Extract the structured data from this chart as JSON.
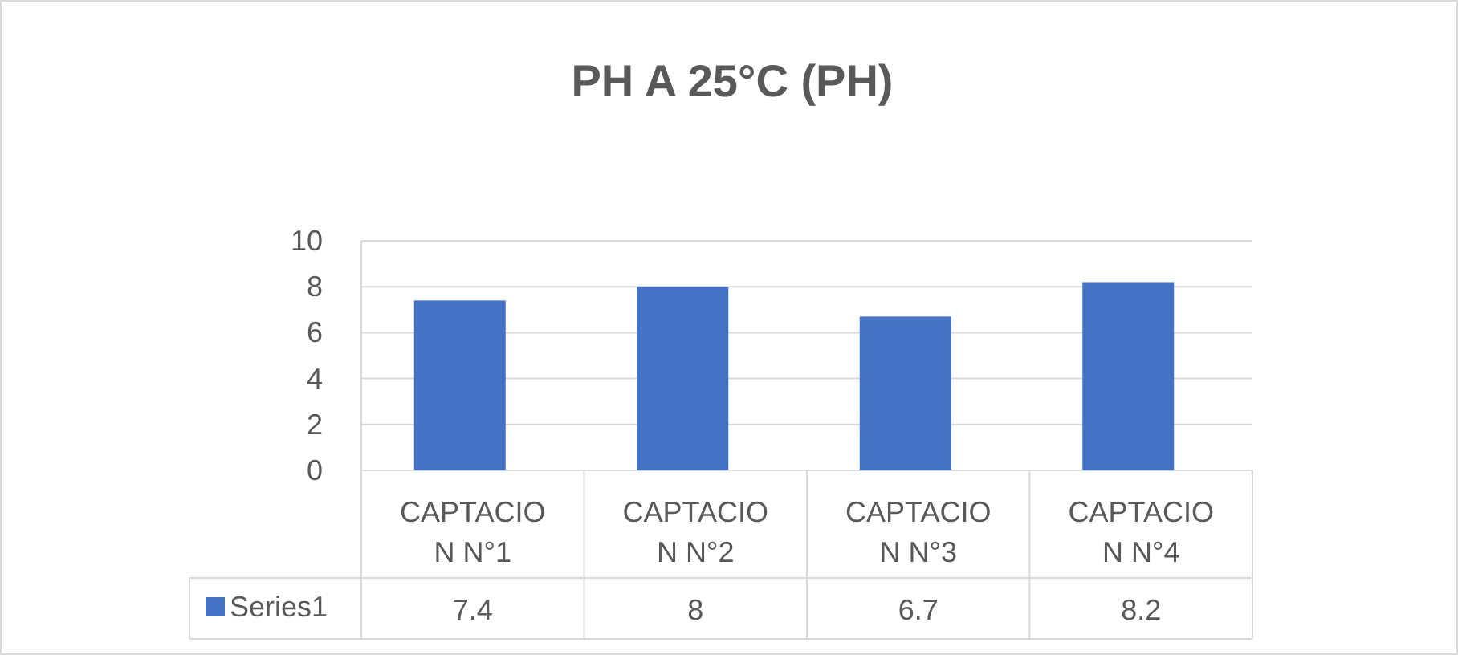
{
  "chart_data": {
    "type": "bar",
    "title": "PH A 25°C (PH)",
    "categories": [
      "CAPTACION N°1",
      "CAPTACION N°2",
      "CAPTACION N°3",
      "CAPTACION N°4"
    ],
    "series": [
      {
        "name": "Series1",
        "color": "#4472c4",
        "values": [
          7.4,
          8,
          6.7,
          8.2
        ]
      }
    ],
    "ylim": [
      0,
      10
    ],
    "yticks": [
      0,
      2,
      4,
      6,
      8,
      10
    ],
    "grid": "y",
    "legend": "bottom",
    "data_labels": true
  }
}
